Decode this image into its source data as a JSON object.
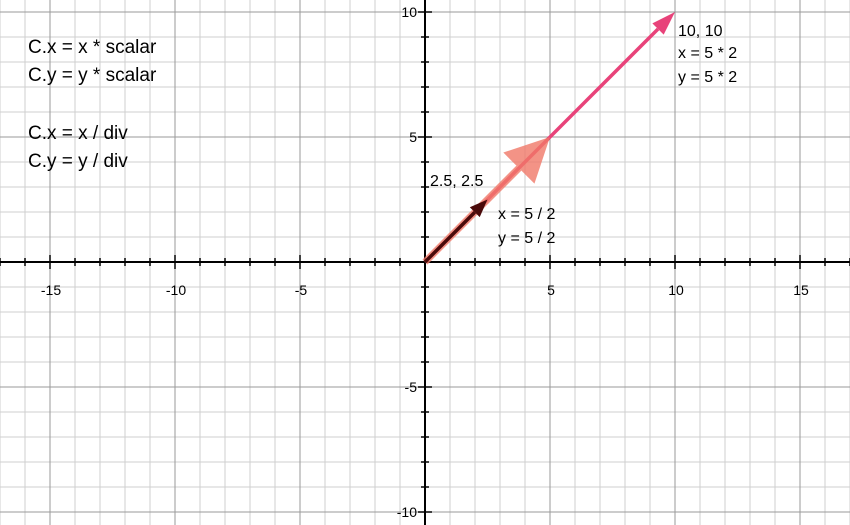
{
  "formulas": {
    "scale_x": "C.x = x * scalar",
    "scale_y": "C.y = y * scalar",
    "div_x": "C.x = x / div",
    "div_y": "C.y = y / div"
  },
  "axes": {
    "x_range": [
      -17,
      17
    ],
    "y_range": [
      -10.5,
      10
    ],
    "x_tick_labels": [
      "-15",
      "-10",
      "-5",
      "5",
      "10",
      "15"
    ],
    "y_tick_labels": [
      "10",
      "5",
      "-5",
      "-10"
    ],
    "minor_grid_step": 1,
    "major_grid_step": 5,
    "grid": true
  },
  "vectors": [
    {
      "name": "scaled",
      "from": [
        0,
        0
      ],
      "to": [
        10,
        10
      ],
      "color": "#e8437a",
      "label_coords": "10, 10",
      "label_x": "x = 5 * 2",
      "label_y": "y = 5 * 2"
    },
    {
      "name": "original",
      "from": [
        0,
        0
      ],
      "to": [
        5,
        5
      ],
      "color": "#f07868"
    },
    {
      "name": "divided",
      "from": [
        0,
        0
      ],
      "to": [
        2.5,
        2.5
      ],
      "color": "#4a0a0a",
      "label_coords": "2.5, 2.5",
      "label_x": "x = 5 / 2",
      "label_y": "y = 5 / 2"
    }
  ],
  "colors": {
    "minor_grid": "#cfcfcf",
    "major_grid": "#9a9a9a",
    "axis": "#000000"
  }
}
